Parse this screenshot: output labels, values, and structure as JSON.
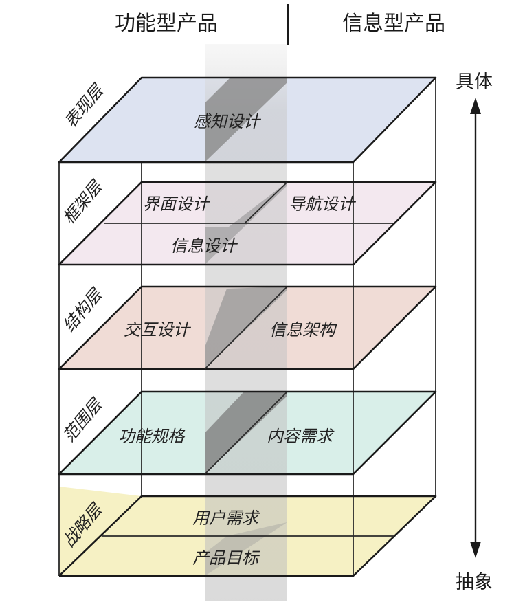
{
  "header": {
    "functional": "功能型产品",
    "informational": "信息型产品"
  },
  "axis": {
    "top": "具体",
    "bottom": "抽象"
  },
  "layers": {
    "surface": {
      "name": "表现层",
      "items": [
        "感知设计"
      ],
      "color": "#dde3f1"
    },
    "skeleton": {
      "name": "框架层",
      "items": [
        "界面设计",
        "导航设计",
        "信息设计"
      ],
      "color": "#f3e8ef"
    },
    "structure": {
      "name": "结构层",
      "items": [
        "交互设计",
        "信息架构"
      ],
      "color": "#f0dcd6"
    },
    "scope": {
      "name": "范围层",
      "items": [
        "功能规格",
        "内容需求"
      ],
      "color": "#d9efe9"
    },
    "strategy": {
      "name": "战略层",
      "items": [
        "用户需求",
        "产品目标"
      ],
      "color": "#f6f1c4"
    }
  },
  "colors": {
    "band": "#888888",
    "line": "#1a1a1a"
  }
}
